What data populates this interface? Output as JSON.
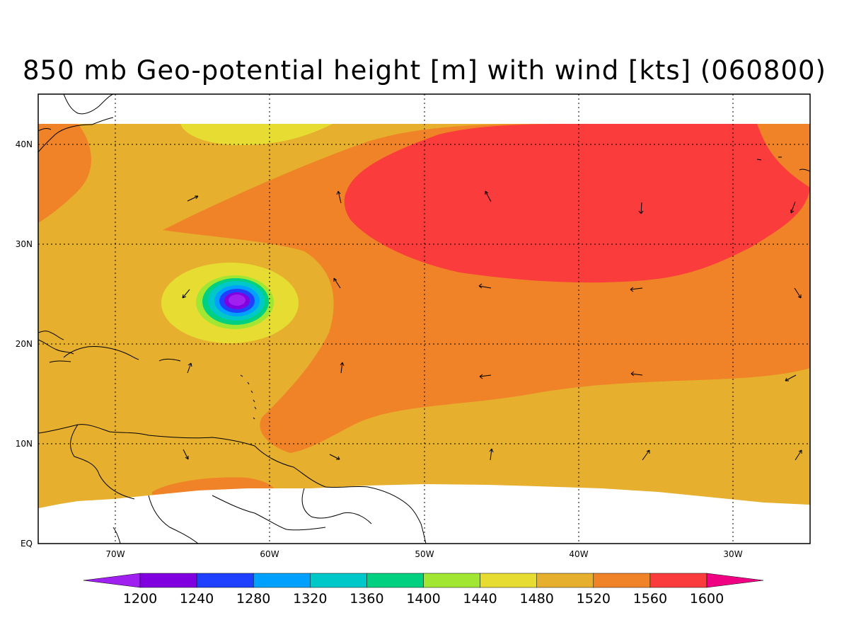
{
  "title": "850 mb Geo-potential height [m] with wind [kts] (060800)",
  "map": {
    "lon_range": [
      -75,
      -25
    ],
    "lat_range": [
      0,
      45
    ],
    "xtick_labels": [
      "70W",
      "60W",
      "50W",
      "40W",
      "30W"
    ],
    "ytick_labels": [
      "EQ",
      "10N",
      "20N",
      "30N",
      "40N"
    ],
    "grid": "dotted"
  },
  "colorbar": {
    "levels": [
      "1200",
      "1240",
      "1280",
      "1320",
      "1360",
      "1400",
      "1440",
      "1480",
      "1520",
      "1560",
      "1600"
    ],
    "colors": [
      "#a020f0",
      "#8000e0",
      "#2040ff",
      "#00a0ff",
      "#00c8c8",
      "#00d080",
      "#a0e632",
      "#e6dc32",
      "#e6af2d",
      "#f08228",
      "#fa3c3c",
      "#f00082"
    ]
  },
  "shading_colors": {
    "h1480": "#e6dc32",
    "h1520": "#e6af2d",
    "h1560": "#f08228",
    "h1600": "#fa3c3c",
    "h1440": "#a0e632",
    "h1400": "#00d080",
    "h1360": "#00c8c8",
    "h1320": "#00a0ff",
    "h1280": "#2040ff",
    "h1240": "#8000e0",
    "h1200": "#a020f0"
  }
}
